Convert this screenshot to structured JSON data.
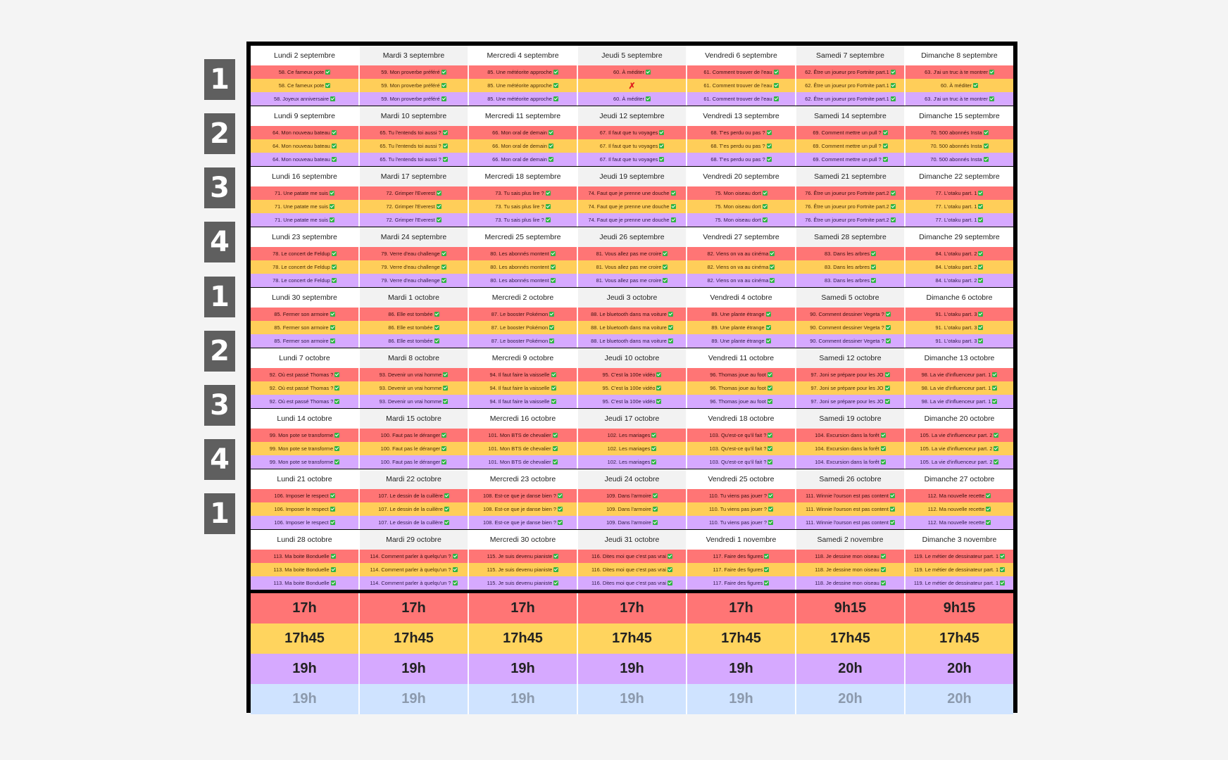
{
  "week_labels": [
    "1",
    "2",
    "3",
    "4",
    "1",
    "2",
    "3",
    "4",
    "1"
  ],
  "weeks": [
    {
      "days": [
        "Lundi 2 septembre",
        "Mardi 3 septembre",
        "Mercredi 4 septembre",
        "Jeudi 5 septembre",
        "Vendredi 6 septembre",
        "Samedi 7 septembre",
        "Dimanche 8 septembre"
      ],
      "red": [
        "58. Ce fameux pote",
        "59. Mon proverbe préféré",
        "85. Une météorite approche",
        "60. À méditer",
        "61. Comment trouver de l'eau",
        "62. Être un joueur pro Fortnite part.1",
        "63. J'ai un truc à te montrer"
      ],
      "yellow": [
        "58. Ce fameux pote",
        "59. Mon proverbe préféré",
        "85. Une météorite approche",
        "",
        "61. Comment trouver de l'eau",
        "62. Être un joueur pro Fortnite part.1",
        "60. À méditer"
      ],
      "purple": [
        "58. Joyeux anniversaire",
        "59. Mon proverbe préféré",
        "85. Une météorite approche",
        "60. À méditer",
        "61. Comment trouver de l'eau",
        "62. Être un joueur pro Fortnite part.1",
        "63. J'ai un truc à te montrer"
      ]
    },
    {
      "days": [
        "Lundi 9 septembre",
        "Mardi 10 septembre",
        "Mercredi 11 septembre",
        "Jeudi 12 septembre",
        "Vendredi 13 septembre",
        "Samedi 14 septembre",
        "Dimanche 15 septembre"
      ],
      "red": [
        "64. Mon nouveau bateau",
        "65. Tu l'entends toi aussi ?",
        "66. Mon oral de demain",
        "67. Il faut que tu voyages",
        "68. T'es perdu ou pas ?",
        "69. Comment mettre un pull ?",
        "70. 500 abonnés Insta"
      ],
      "yellow": [
        "64. Mon nouveau bateau",
        "65. Tu l'entends toi aussi ?",
        "66. Mon oral de demain",
        "67. Il faut que tu voyages",
        "68. T'es perdu ou pas ?",
        "69. Comment mettre un pull ?",
        "70. 500 abonnés Insta"
      ],
      "purple": [
        "64. Mon nouveau bateau",
        "65. Tu l'entends toi aussi ?",
        "66. Mon oral de demain",
        "67. Il faut que tu voyages",
        "68. T'es perdu ou pas ?",
        "69. Comment mettre un pull ?",
        "70. 500 abonnés Insta"
      ]
    },
    {
      "days": [
        "Lundi 16 septembre",
        "Mardi 17 septembre",
        "Mercredi 18 septembre",
        "Jeudi 19 septembre",
        "Vendredi 20 septembre",
        "Samedi 21 septembre",
        "Dimanche 22 septembre"
      ],
      "red": [
        "71. Une patate me suis",
        "72. Grimper l'Everest",
        "73. Tu sais plus lire ?",
        "74. Faut que je prenne une douche",
        "75. Mon oiseau dort",
        "76. Être un joueur pro Fortnite part.2",
        "77. L'otaku part. 1"
      ],
      "yellow": [
        "71. Une patate me suis",
        "72. Grimper l'Everest",
        "73. Tu sais plus lire ?",
        "74. Faut que je prenne une douche",
        "75. Mon oiseau dort",
        "76. Être un joueur pro Fortnite part.2",
        "77. L'otaku part. 1"
      ],
      "purple": [
        "71. Une patate me suis",
        "72. Grimper l'Everest",
        "73. Tu sais plus lire ?",
        "74. Faut que je prenne une douche",
        "75. Mon oiseau dort",
        "76. Être un joueur pro Fortnite part.2",
        "77. L'otaku part. 1"
      ]
    },
    {
      "days": [
        "Lundi 23 septembre",
        "Mardi 24 septembre",
        "Mercredi 25 septembre",
        "Jeudi 26 septembre",
        "Vendredi 27 septembre",
        "Samedi 28 septembre",
        "Dimanche 29 septembre"
      ],
      "red": [
        "78. Le concert de Feldup",
        "79. Verre d'eau challenge",
        "80. Les abonnés montent",
        "81. Vous allez pas me croire",
        "82. Viens on va au cinéma",
        "83. Dans les arbres",
        "84. L'otaku part. 2"
      ],
      "yellow": [
        "78. Le concert de Feldup",
        "79. Verre d'eau challenge",
        "80. Les abonnés montent",
        "81. Vous allez pas me croire",
        "82. Viens on va au cinéma",
        "83. Dans les arbres",
        "84. L'otaku part. 2"
      ],
      "purple": [
        "78. Le concert de Feldup",
        "79. Verre d'eau challenge",
        "80. Les abonnés montent",
        "81. Vous allez pas me croire",
        "82. Viens on va au cinéma",
        "83. Dans les arbres",
        "84. L'otaku part. 2"
      ]
    },
    {
      "days": [
        "Lundi 30 septembre",
        "Mardi 1 octobre",
        "Mercredi 2 octobre",
        "Jeudi 3 octobre",
        "Vendredi 4 octobre",
        "Samedi 5 octobre",
        "Dimanche 6 octobre"
      ],
      "red": [
        "85. Fermer son armoire",
        "86. Elle est tombée",
        "87. Le booster Pokémon",
        "88. Le bluetooth dans ma voiture",
        "89. Une plante étrange",
        "90. Comment dessiner Vegeta ?",
        "91. L'otaku part. 3"
      ],
      "yellow": [
        "85. Fermer son armoire",
        "86. Elle est tombée",
        "87. Le booster Pokémon",
        "88. Le bluetooth dans ma voiture",
        "89. Une plante étrange",
        "90. Comment dessiner Vegeta ?",
        "91. L'otaku part. 3"
      ],
      "purple": [
        "85. Fermer son armoire",
        "86. Elle est tombée",
        "87. Le booster Pokémon",
        "88. Le bluetooth dans ma voiture",
        "89. Une plante étrange",
        "90. Comment dessiner Vegeta ?",
        "91. L'otaku part. 3"
      ]
    },
    {
      "days": [
        "Lundi 7 octobre",
        "Mardi 8 octobre",
        "Mercredi 9 octobre",
        "Jeudi 10 octobre",
        "Vendredi 11 octobre",
        "Samedi 12 octobre",
        "Dimanche 13 octobre"
      ],
      "red": [
        "92. Où est passé Thomas ?",
        "93. Devenir un vrai homme",
        "94. Il faut faire la vaisselle",
        "95. C'est la 100e vidéo",
        "96. Thomas joue au foot",
        "97. Joni se prépare pour les JO",
        "98. La vie d'influenceur part. 1"
      ],
      "yellow": [
        "92. Où est passé Thomas ?",
        "93. Devenir un vrai homme",
        "94. Il faut faire la vaisselle",
        "95. C'est la 100e vidéo",
        "96. Thomas joue au foot",
        "97. Joni se prépare pour les JO",
        "98. La vie d'influenceur part. 1"
      ],
      "purple": [
        "92. Où est passé Thomas ?",
        "93. Devenir un vrai homme",
        "94. Il faut faire la vaisselle",
        "95. C'est la 100e vidéo",
        "96. Thomas joue au foot",
        "97. Joni se prépare pour les JO",
        "98. La vie d'influenceur part. 1"
      ]
    },
    {
      "days": [
        "Lundi 14 octobre",
        "Mardi 15 octobre",
        "Mercredi 16 octobre",
        "Jeudi 17 octobre",
        "Vendredi 18 octobre",
        "Samedi 19 octobre",
        "Dimanche 20 octobre"
      ],
      "red": [
        "99. Mon pote se transforme",
        "100. Faut pas le déranger",
        "101. Mon BTS de chevalier",
        "102. Les mariages",
        "103. Qu'est-ce qu'il fait ?",
        "104. Excursion dans la forêt",
        "105. La vie d'influenceur part. 2"
      ],
      "yellow": [
        "99. Mon pote se transforme",
        "100. Faut pas le déranger",
        "101. Mon BTS de chevalier",
        "102. Les mariages",
        "103. Qu'est-ce qu'il fait ?",
        "104. Excursion dans la forêt",
        "105. La vie d'influenceur part. 2"
      ],
      "purple": [
        "99. Mon pote se transforme",
        "100. Faut pas le déranger",
        "101. Mon BTS de chevalier",
        "102. Les mariages",
        "103. Qu'est-ce qu'il fait ?",
        "104. Excursion dans la forêt",
        "105. La vie d'influenceur part. 2"
      ]
    },
    {
      "days": [
        "Lundi 21 octobre",
        "Mardi 22 octobre",
        "Mercredi 23 octobre",
        "Jeudi 24 octobre",
        "Vendredi 25 octobre",
        "Samedi 26 octobre",
        "Dimanche 27 octobre"
      ],
      "red": [
        "106. Imposer le respect",
        "107. Le dessin de la cuillère",
        "108. Est-ce que je danse bien ?",
        "109. Dans l'armoire",
        "110. Tu viens pas jouer ?",
        "111. Winnie l'ourson est pas content",
        "112. Ma nouvelle recette"
      ],
      "yellow": [
        "106. Imposer le respect",
        "107. Le dessin de la cuillère",
        "108. Est-ce que je danse bien ?",
        "109. Dans l'armoire",
        "110. Tu viens pas jouer ?",
        "111. Winnie l'ourson est pas content",
        "112. Ma nouvelle recette"
      ],
      "purple": [
        "106. Imposer le respect",
        "107. Le dessin de la cuillère",
        "108. Est-ce que je danse bien ?",
        "109. Dans l'armoire",
        "110. Tu viens pas jouer ?",
        "111. Winnie l'ourson est pas content",
        "112. Ma nouvelle recette"
      ]
    },
    {
      "days": [
        "Lundi 28 octobre",
        "Mardi 29 octobre",
        "Mercredi 30 octobre",
        "Jeudi 31 octobre",
        "Vendredi 1 novembre",
        "Samedi 2 novembre",
        "Dimanche 3 novembre"
      ],
      "red": [
        "113. Ma boite Bonduelle",
        "114. Comment parler à quelqu'un ?",
        "115. Je suis devenu pianiste",
        "116. Dites moi que c'est pas vrai",
        "117. Faire des figures",
        "118. Je dessine mon oiseau",
        "119. Le métier de dessinateur part. 1"
      ],
      "yellow": [
        "113. Ma boite Bonduelle",
        "114. Comment parler à quelqu'un ?",
        "115. Je suis devenu pianiste",
        "116. Dites moi que c'est pas vrai",
        "117. Faire des figures",
        "118. Je dessine mon oiseau",
        "119. Le métier de dessinateur part. 1"
      ],
      "purple": [
        "113. Ma boite Bonduelle",
        "114. Comment parler à quelqu'un ?",
        "115. Je suis devenu pianiste",
        "116. Dites moi que c'est pas vrai",
        "117. Faire des figures",
        "118. Je dessine mon oiseau",
        "119. Le métier de dessinateur part. 1"
      ]
    }
  ],
  "missing_mark": "✗",
  "times": {
    "red": [
      "17h",
      "17h",
      "17h",
      "17h",
      "17h",
      "9h15",
      "9h15"
    ],
    "yellow": [
      "17h45",
      "17h45",
      "17h45",
      "17h45",
      "17h45",
      "17h45",
      "17h45"
    ],
    "purple": [
      "19h",
      "19h",
      "19h",
      "19h",
      "19h",
      "20h",
      "20h"
    ],
    "blue": [
      "19h",
      "19h",
      "19h",
      "19h",
      "19h",
      "20h",
      "20h"
    ]
  },
  "colors": {
    "red": "#ff7575",
    "yellow": "#ffce59",
    "purple": "#d6a9ff",
    "blue": "#cfe3ff",
    "check": "#2fb344"
  }
}
